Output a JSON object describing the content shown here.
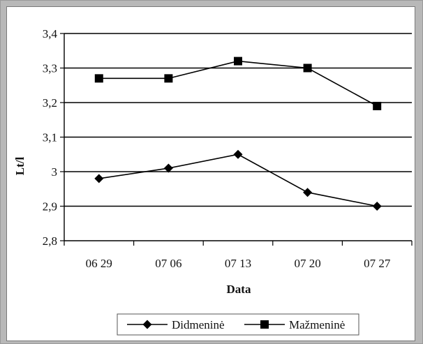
{
  "chart_data": {
    "type": "line",
    "categories": [
      "06 29",
      "07 06",
      "07 13",
      "07 20",
      "07 27"
    ],
    "series": [
      {
        "name": "Didmeninė",
        "values": [
          2.98,
          3.01,
          3.05,
          2.94,
          2.9
        ],
        "marker": "diamond",
        "color": "#000000"
      },
      {
        "name": "Mažmeninė",
        "values": [
          3.27,
          3.27,
          3.32,
          3.3,
          3.19
        ],
        "marker": "square",
        "color": "#000000"
      }
    ],
    "xlabel": "Data",
    "ylabel": "Lt/l",
    "ylim": [
      2.8,
      3.4
    ],
    "yticks": [
      2.8,
      2.9,
      3.0,
      3.1,
      3.2,
      3.3,
      3.4
    ],
    "ytick_labels": [
      "2,8",
      "2,9",
      "3",
      "3,1",
      "3,2",
      "3,3",
      "3,4"
    ],
    "grid": "horizontal",
    "legend_position": "bottom"
  }
}
